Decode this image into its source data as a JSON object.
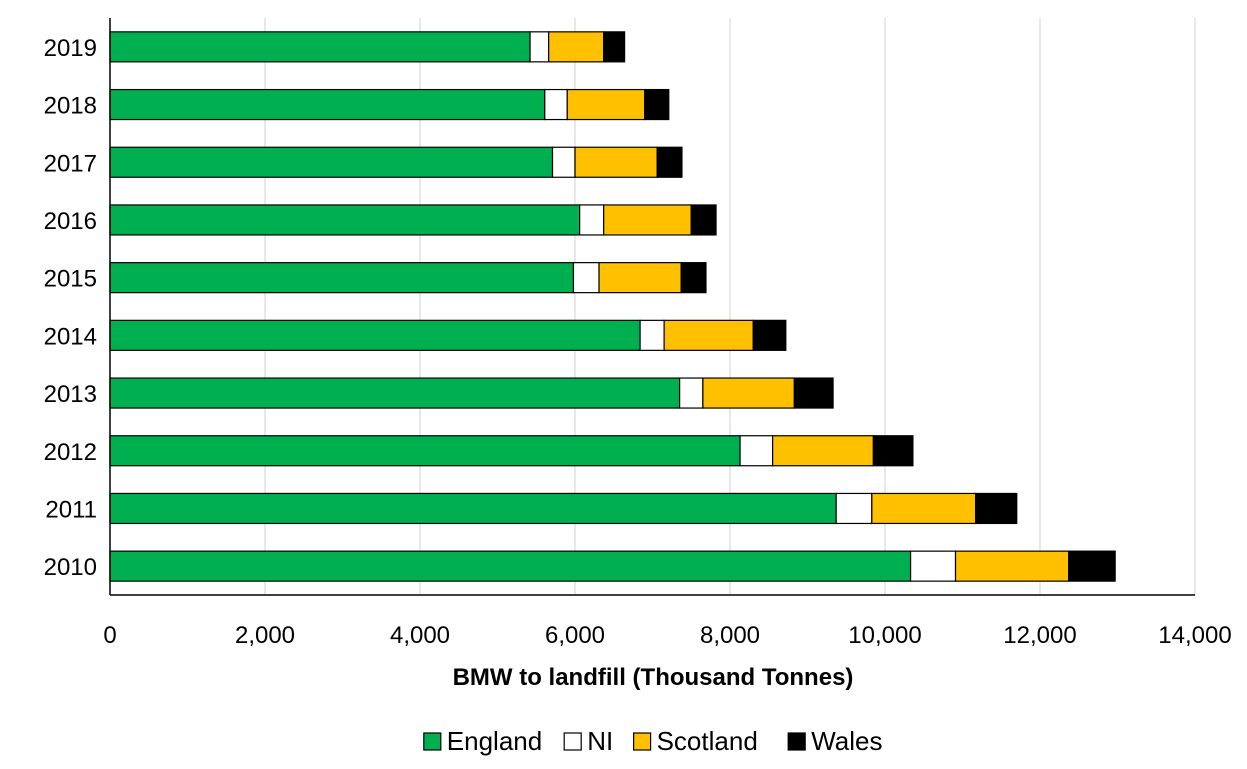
{
  "chart_data": {
    "type": "bar",
    "orientation": "horizontal",
    "stacked": true,
    "title": "",
    "xlabel": "BMW to landfill (Thousand Tonnes)",
    "ylabel": "",
    "xlim": [
      0,
      14000
    ],
    "x_ticks": [
      0,
      2000,
      4000,
      6000,
      8000,
      10000,
      12000,
      14000
    ],
    "x_tick_labels": [
      "0",
      "2,000",
      "4,000",
      "6,000",
      "8,000",
      "10,000",
      "12,000",
      "14,000"
    ],
    "grid": "vertical",
    "legend_position": "bottom",
    "categories": [
      "2019",
      "2018",
      "2017",
      "2016",
      "2015",
      "2014",
      "2013",
      "2012",
      "2011",
      "2010"
    ],
    "series": [
      {
        "name": "England",
        "color": "#00b050",
        "values": [
          5420,
          5610,
          5710,
          6060,
          5980,
          6840,
          7350,
          8130,
          9370,
          10330
        ]
      },
      {
        "name": "NI",
        "color": "#ffffff",
        "values": [
          240,
          290,
          290,
          310,
          330,
          310,
          300,
          420,
          460,
          580
        ]
      },
      {
        "name": "Scotland",
        "color": "#ffc000",
        "values": [
          710,
          1000,
          1060,
          1130,
          1060,
          1150,
          1180,
          1300,
          1340,
          1460
        ]
      },
      {
        "name": "Wales",
        "color": "#000000",
        "values": [
          270,
          310,
          320,
          320,
          320,
          420,
          500,
          510,
          530,
          600
        ]
      }
    ]
  }
}
